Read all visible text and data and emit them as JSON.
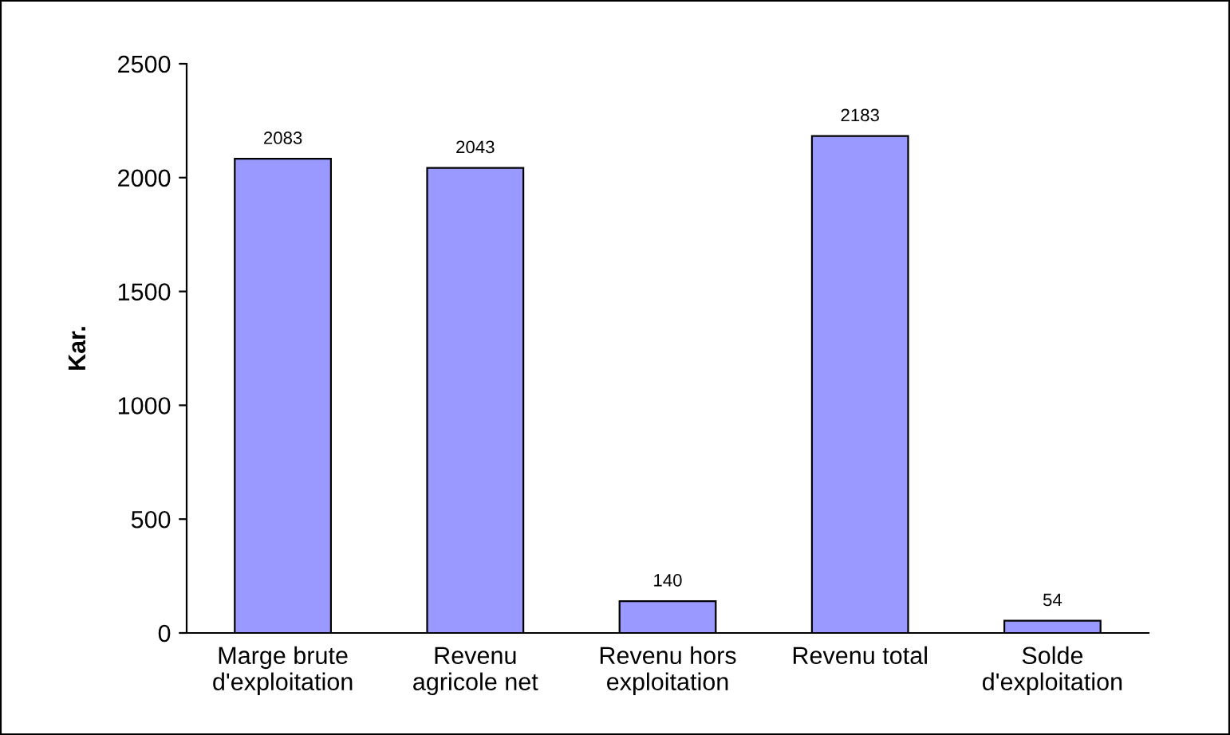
{
  "chart_data": {
    "type": "bar",
    "ylabel": "Kar.",
    "categories": [
      "Marge brute\nd'exploitation",
      "Revenu\nagricole net",
      "Revenu hors\nexploitation",
      "Revenu total",
      "Solde\nd'exploitation"
    ],
    "values": [
      2083,
      2043,
      140,
      2183,
      54
    ],
    "color": "#9999ff",
    "ylim": [
      0,
      2500
    ],
    "yticks": [
      0,
      500,
      1000,
      1500,
      2000,
      2500
    ],
    "data_labels": true,
    "grid": false,
    "legend": false
  }
}
